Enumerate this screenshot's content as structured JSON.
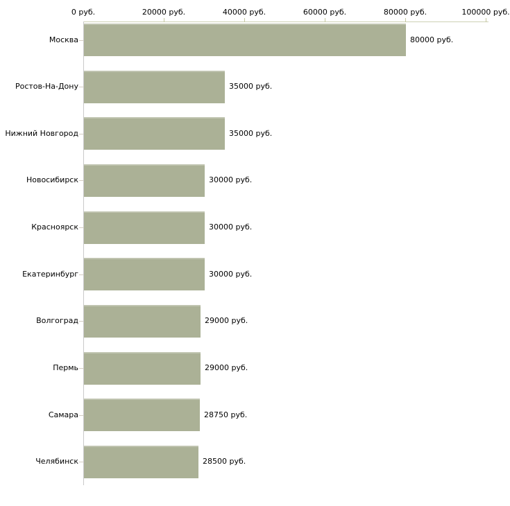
{
  "chart_data": {
    "type": "bar",
    "orientation": "horizontal",
    "title": "",
    "xlabel": "",
    "ylabel": "",
    "grid": false,
    "legend": false,
    "unit": "руб.",
    "categories": [
      "Москва",
      "Ростов-На-Дону",
      "Нижний Новгород",
      "Новосибирск",
      "Красноярск",
      "Екатеринбург",
      "Волгоград",
      "Пермь",
      "Самара",
      "Челябинск"
    ],
    "values": [
      80000,
      35000,
      35000,
      30000,
      30000,
      30000,
      29000,
      29000,
      28750,
      28500
    ],
    "value_labels": [
      "80000 руб.",
      "35000 руб.",
      "35000 руб.",
      "30000 руб.",
      "30000 руб.",
      "30000 руб.",
      "29000 руб.",
      "29000 руб.",
      "28750 руб.",
      "28500 руб."
    ],
    "x_axis": {
      "position": "top",
      "range": [
        0,
        100000
      ],
      "tick_values": [
        0,
        20000,
        40000,
        60000,
        80000,
        100000
      ],
      "tick_labels": [
        "0 руб.",
        "20000 руб.",
        "40000 руб.",
        "60000 руб.",
        "80000 руб.",
        "100000 руб."
      ]
    },
    "colors": {
      "bar_fill": "#abb196",
      "axis_line": "#cdd0b4",
      "vertical_axis_line": "#c9c9c9",
      "tick_mark": "#c5c7a0",
      "category_tick": "#d4cdc2",
      "text": "#000000",
      "background": "#ffffff"
    }
  }
}
